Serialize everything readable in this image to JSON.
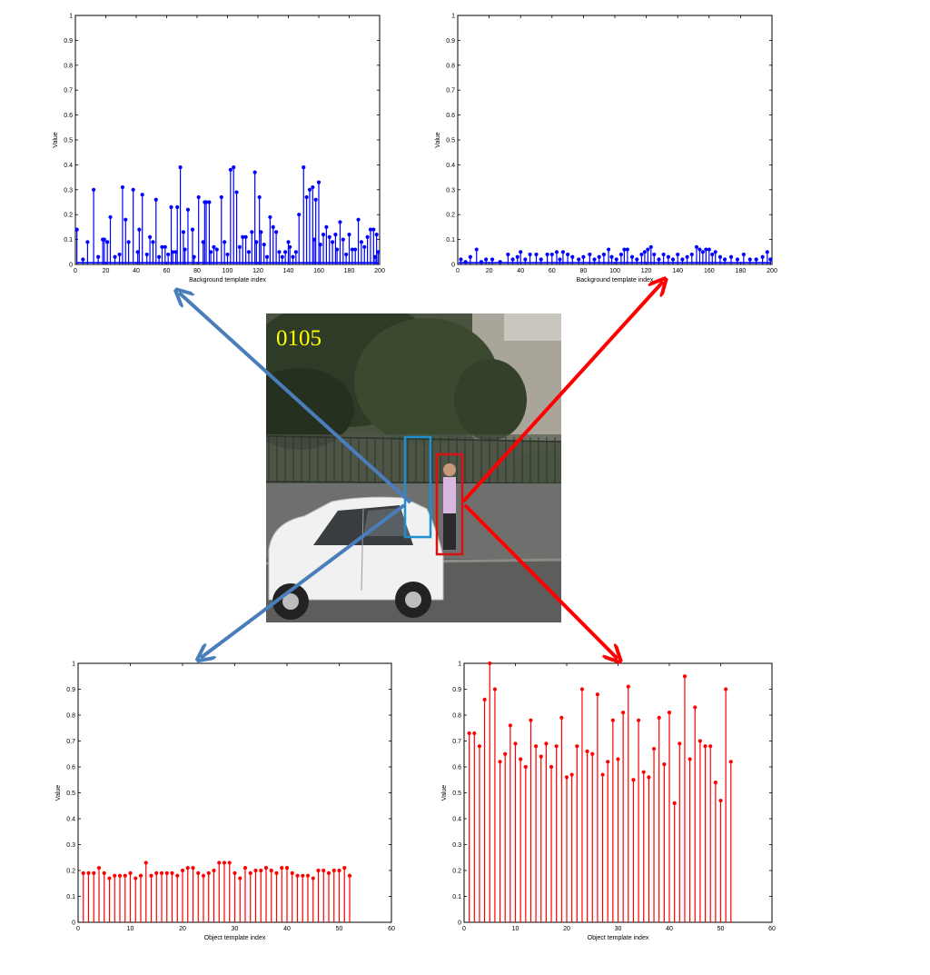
{
  "photo": {
    "frame_label": "0105",
    "description_icon": "video-frame-photo",
    "colors": {
      "background_box": "#1e90d0",
      "object_box": "#d41414",
      "arrow_blue": "#4a7ebb",
      "arrow_red": "#ff0000"
    }
  },
  "chart_data": [
    {
      "id": "background-blue",
      "type": "stem",
      "color": "#0000ff",
      "xlabel": "Background template index",
      "ylabel": "Value",
      "xlim": [
        0,
        200
      ],
      "ylim": [
        0,
        1
      ],
      "xticks": [
        0,
        20,
        40,
        60,
        80,
        100,
        120,
        140,
        160,
        180,
        200
      ],
      "yticks": [
        "0",
        "0.1",
        "0.2",
        "0.3",
        "0.4",
        "0.5",
        "0.6",
        "0.7",
        "0.8",
        "0.9",
        "1"
      ],
      "baseline": 0.01,
      "points": [
        [
          1,
          0.14
        ],
        [
          5,
          0.02
        ],
        [
          8,
          0.09
        ],
        [
          12,
          0.3
        ],
        [
          15,
          0.03
        ],
        [
          18,
          0.1
        ],
        [
          19,
          0.1
        ],
        [
          21,
          0.09
        ],
        [
          23,
          0.19
        ],
        [
          26,
          0.03
        ],
        [
          29,
          0.04
        ],
        [
          31,
          0.31
        ],
        [
          33,
          0.18
        ],
        [
          35,
          0.09
        ],
        [
          38,
          0.3
        ],
        [
          41,
          0.05
        ],
        [
          42,
          0.14
        ],
        [
          44,
          0.28
        ],
        [
          47,
          0.04
        ],
        [
          49,
          0.11
        ],
        [
          51,
          0.09
        ],
        [
          53,
          0.26
        ],
        [
          55,
          0.03
        ],
        [
          57,
          0.07
        ],
        [
          59,
          0.07
        ],
        [
          61,
          0.04
        ],
        [
          63,
          0.23
        ],
        [
          64,
          0.05
        ],
        [
          66,
          0.05
        ],
        [
          67,
          0.23
        ],
        [
          69,
          0.39
        ],
        [
          71,
          0.13
        ],
        [
          72,
          0.06
        ],
        [
          74,
          0.22
        ],
        [
          77,
          0.14
        ],
        [
          78,
          0.03
        ],
        [
          81,
          0.27
        ],
        [
          84,
          0.09
        ],
        [
          85,
          0.25
        ],
        [
          86,
          0.25
        ],
        [
          88,
          0.25
        ],
        [
          89,
          0.05
        ],
        [
          91,
          0.07
        ],
        [
          93,
          0.06
        ],
        [
          96,
          0.27
        ],
        [
          98,
          0.09
        ],
        [
          100,
          0.04
        ],
        [
          102,
          0.38
        ],
        [
          104,
          0.39
        ],
        [
          106,
          0.29
        ],
        [
          108,
          0.07
        ],
        [
          110,
          0.11
        ],
        [
          112,
          0.11
        ],
        [
          114,
          0.05
        ],
        [
          116,
          0.13
        ],
        [
          118,
          0.37
        ],
        [
          119,
          0.09
        ],
        [
          121,
          0.27
        ],
        [
          122,
          0.13
        ],
        [
          124,
          0.08
        ],
        [
          126,
          0.03
        ],
        [
          128,
          0.19
        ],
        [
          130,
          0.15
        ],
        [
          132,
          0.13
        ],
        [
          134,
          0.05
        ],
        [
          136,
          0.03
        ],
        [
          138,
          0.05
        ],
        [
          140,
          0.09
        ],
        [
          141,
          0.07
        ],
        [
          143,
          0.03
        ],
        [
          145,
          0.05
        ],
        [
          147,
          0.2
        ],
        [
          150,
          0.39
        ],
        [
          152,
          0.27
        ],
        [
          154,
          0.3
        ],
        [
          156,
          0.31
        ],
        [
          157,
          0.1
        ],
        [
          158,
          0.26
        ],
        [
          160,
          0.33
        ],
        [
          161,
          0.08
        ],
        [
          163,
          0.12
        ],
        [
          165,
          0.15
        ],
        [
          167,
          0.11
        ],
        [
          169,
          0.09
        ],
        [
          171,
          0.12
        ],
        [
          172,
          0.06
        ],
        [
          174,
          0.17
        ],
        [
          176,
          0.1
        ],
        [
          178,
          0.04
        ],
        [
          180,
          0.12
        ],
        [
          182,
          0.06
        ],
        [
          184,
          0.06
        ],
        [
          186,
          0.18
        ],
        [
          188,
          0.09
        ],
        [
          190,
          0.07
        ],
        [
          192,
          0.11
        ],
        [
          194,
          0.14
        ],
        [
          196,
          0.14
        ],
        [
          197,
          0.03
        ],
        [
          198,
          0.12
        ],
        [
          199,
          0.05
        ]
      ]
    },
    {
      "id": "background-red",
      "type": "stem",
      "color": "#0000ff",
      "xlabel": "Background template index",
      "ylabel": "Value",
      "xlim": [
        0,
        200
      ],
      "ylim": [
        0,
        1
      ],
      "xticks": [
        0,
        20,
        40,
        60,
        80,
        100,
        120,
        140,
        160,
        180,
        200
      ],
      "yticks": [
        "0",
        "0.1",
        "0.2",
        "0.3",
        "0.4",
        "0.5",
        "0.6",
        "0.7",
        "0.8",
        "0.9",
        "1"
      ],
      "baseline": 0.01,
      "points": [
        [
          2,
          0.02
        ],
        [
          5,
          0.01
        ],
        [
          8,
          0.03
        ],
        [
          12,
          0.06
        ],
        [
          15,
          0.01
        ],
        [
          18,
          0.02
        ],
        [
          22,
          0.02
        ],
        [
          27,
          0.01
        ],
        [
          32,
          0.04
        ],
        [
          35,
          0.02
        ],
        [
          38,
          0.03
        ],
        [
          40,
          0.05
        ],
        [
          43,
          0.02
        ],
        [
          46,
          0.04
        ],
        [
          50,
          0.04
        ],
        [
          53,
          0.02
        ],
        [
          57,
          0.04
        ],
        [
          60,
          0.04
        ],
        [
          63,
          0.05
        ],
        [
          65,
          0.02
        ],
        [
          67,
          0.05
        ],
        [
          70,
          0.04
        ],
        [
          73,
          0.03
        ],
        [
          77,
          0.02
        ],
        [
          80,
          0.03
        ],
        [
          84,
          0.04
        ],
        [
          87,
          0.02
        ],
        [
          90,
          0.03
        ],
        [
          93,
          0.04
        ],
        [
          96,
          0.06
        ],
        [
          98,
          0.03
        ],
        [
          101,
          0.02
        ],
        [
          104,
          0.04
        ],
        [
          106,
          0.06
        ],
        [
          108,
          0.06
        ],
        [
          111,
          0.03
        ],
        [
          114,
          0.02
        ],
        [
          117,
          0.04
        ],
        [
          119,
          0.05
        ],
        [
          121,
          0.06
        ],
        [
          123,
          0.07
        ],
        [
          125,
          0.04
        ],
        [
          128,
          0.02
        ],
        [
          131,
          0.04
        ],
        [
          134,
          0.03
        ],
        [
          137,
          0.02
        ],
        [
          140,
          0.04
        ],
        [
          143,
          0.02
        ],
        [
          146,
          0.03
        ],
        [
          149,
          0.04
        ],
        [
          152,
          0.07
        ],
        [
          154,
          0.06
        ],
        [
          156,
          0.05
        ],
        [
          158,
          0.06
        ],
        [
          160,
          0.06
        ],
        [
          162,
          0.04
        ],
        [
          164,
          0.05
        ],
        [
          167,
          0.03
        ],
        [
          170,
          0.02
        ],
        [
          174,
          0.03
        ],
        [
          178,
          0.02
        ],
        [
          182,
          0.04
        ],
        [
          186,
          0.02
        ],
        [
          190,
          0.02
        ],
        [
          194,
          0.03
        ],
        [
          197,
          0.05
        ],
        [
          199,
          0.02
        ]
      ]
    },
    {
      "id": "object-blue",
      "type": "stem",
      "color": "#ff0000",
      "xlabel": "Object template index",
      "ylabel": "Value",
      "xlim": [
        0,
        60
      ],
      "ylim": [
        0,
        1
      ],
      "xticks": [
        0,
        10,
        20,
        30,
        40,
        50,
        60
      ],
      "yticks": [
        "0",
        "0.1",
        "0.2",
        "0.3",
        "0.4",
        "0.5",
        "0.6",
        "0.7",
        "0.8",
        "0.9",
        "1"
      ],
      "baseline": 0,
      "points": [
        [
          1,
          0.19
        ],
        [
          2,
          0.19
        ],
        [
          3,
          0.19
        ],
        [
          4,
          0.21
        ],
        [
          5,
          0.19
        ],
        [
          6,
          0.17
        ],
        [
          7,
          0.18
        ],
        [
          8,
          0.18
        ],
        [
          9,
          0.18
        ],
        [
          10,
          0.19
        ],
        [
          11,
          0.17
        ],
        [
          12,
          0.18
        ],
        [
          13,
          0.23
        ],
        [
          14,
          0.18
        ],
        [
          15,
          0.19
        ],
        [
          16,
          0.19
        ],
        [
          17,
          0.19
        ],
        [
          18,
          0.19
        ],
        [
          19,
          0.18
        ],
        [
          20,
          0.2
        ],
        [
          21,
          0.21
        ],
        [
          22,
          0.21
        ],
        [
          23,
          0.19
        ],
        [
          24,
          0.18
        ],
        [
          25,
          0.19
        ],
        [
          26,
          0.2
        ],
        [
          27,
          0.23
        ],
        [
          28,
          0.23
        ],
        [
          29,
          0.23
        ],
        [
          30,
          0.19
        ],
        [
          31,
          0.17
        ],
        [
          32,
          0.21
        ],
        [
          33,
          0.19
        ],
        [
          34,
          0.2
        ],
        [
          35,
          0.2
        ],
        [
          36,
          0.21
        ],
        [
          37,
          0.2
        ],
        [
          38,
          0.19
        ],
        [
          39,
          0.21
        ],
        [
          40,
          0.21
        ],
        [
          41,
          0.19
        ],
        [
          42,
          0.18
        ],
        [
          43,
          0.18
        ],
        [
          44,
          0.18
        ],
        [
          45,
          0.17
        ],
        [
          46,
          0.2
        ],
        [
          47,
          0.2
        ],
        [
          48,
          0.19
        ],
        [
          49,
          0.2
        ],
        [
          50,
          0.2
        ],
        [
          51,
          0.21
        ],
        [
          52,
          0.18
        ]
      ]
    },
    {
      "id": "object-red",
      "type": "stem",
      "color": "#ff0000",
      "xlabel": "Object template index",
      "ylabel": "Value",
      "xlim": [
        0,
        60
      ],
      "ylim": [
        0,
        1
      ],
      "xticks": [
        0,
        10,
        20,
        30,
        40,
        50,
        60
      ],
      "yticks": [
        "0",
        "0.1",
        "0.2",
        "0.3",
        "0.4",
        "0.5",
        "0.6",
        "0.7",
        "0.8",
        "0.9",
        "1"
      ],
      "baseline": 0,
      "points": [
        [
          1,
          0.73
        ],
        [
          2,
          0.73
        ],
        [
          3,
          0.68
        ],
        [
          4,
          0.86
        ],
        [
          5,
          1.0
        ],
        [
          6,
          0.9
        ],
        [
          7,
          0.62
        ],
        [
          8,
          0.65
        ],
        [
          9,
          0.76
        ],
        [
          10,
          0.69
        ],
        [
          11,
          0.63
        ],
        [
          12,
          0.6
        ],
        [
          13,
          0.78
        ],
        [
          14,
          0.68
        ],
        [
          15,
          0.64
        ],
        [
          16,
          0.69
        ],
        [
          17,
          0.6
        ],
        [
          18,
          0.68
        ],
        [
          19,
          0.79
        ],
        [
          20,
          0.56
        ],
        [
          21,
          0.57
        ],
        [
          22,
          0.68
        ],
        [
          23,
          0.9
        ],
        [
          24,
          0.66
        ],
        [
          25,
          0.65
        ],
        [
          26,
          0.88
        ],
        [
          27,
          0.57
        ],
        [
          28,
          0.62
        ],
        [
          29,
          0.78
        ],
        [
          30,
          0.63
        ],
        [
          31,
          0.81
        ],
        [
          32,
          0.91
        ],
        [
          33,
          0.55
        ],
        [
          34,
          0.78
        ],
        [
          35,
          0.58
        ],
        [
          36,
          0.56
        ],
        [
          37,
          0.67
        ],
        [
          38,
          0.79
        ],
        [
          39,
          0.61
        ],
        [
          40,
          0.81
        ],
        [
          41,
          0.46
        ],
        [
          42,
          0.69
        ],
        [
          43,
          0.95
        ],
        [
          44,
          0.63
        ],
        [
          45,
          0.83
        ],
        [
          46,
          0.7
        ],
        [
          47,
          0.68
        ],
        [
          48,
          0.68
        ],
        [
          49,
          0.54
        ],
        [
          50,
          0.47
        ],
        [
          51,
          0.9
        ],
        [
          52,
          0.62
        ]
      ]
    }
  ]
}
